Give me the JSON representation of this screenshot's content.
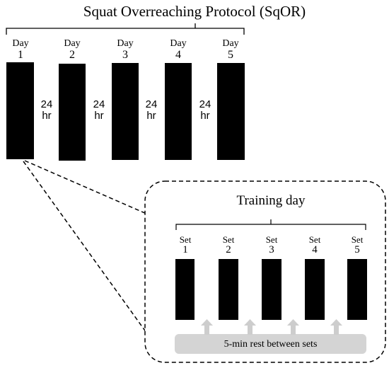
{
  "title": "Squat Overreaching Protocol (SqOR)",
  "days": [
    {
      "word": "Day",
      "num": "1"
    },
    {
      "word": "Day",
      "num": "2"
    },
    {
      "word": "Day",
      "num": "3"
    },
    {
      "word": "Day",
      "num": "4"
    },
    {
      "word": "Day",
      "num": "5"
    }
  ],
  "gaps": [
    {
      "value": "24",
      "unit": "hr"
    },
    {
      "value": "24",
      "unit": "hr"
    },
    {
      "value": "24",
      "unit": "hr"
    },
    {
      "value": "24",
      "unit": "hr"
    }
  ],
  "inset": {
    "title": "Training day",
    "sets": [
      {
        "word": "Set",
        "num": "1"
      },
      {
        "word": "Set",
        "num": "2"
      },
      {
        "word": "Set",
        "num": "3"
      },
      {
        "word": "Set",
        "num": "4"
      },
      {
        "word": "Set",
        "num": "5"
      }
    ],
    "rest_label": "5-min rest between sets"
  }
}
